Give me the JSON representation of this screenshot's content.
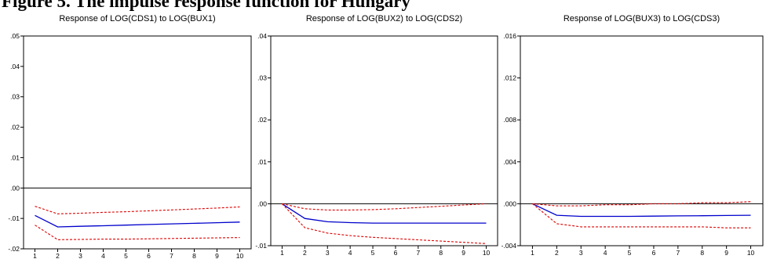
{
  "figure": {
    "title": "Figure 5. The impulse response function for Hungary"
  },
  "colors": {
    "response": "#0000cc",
    "band": "#dd0000",
    "axis": "#000000"
  },
  "chart_data": [
    {
      "type": "line",
      "title": "Response of LOG(CDS1) to LOG(BUX1)",
      "x": [
        1,
        2,
        3,
        4,
        5,
        6,
        7,
        8,
        9,
        10
      ],
      "x_tick_labels": [
        "1",
        "2",
        "3",
        "4",
        "5",
        "6",
        "7",
        "8",
        "9",
        "10"
      ],
      "ylim": [
        -0.02,
        0.05
      ],
      "y_ticks": [
        0.05,
        0.04,
        0.03,
        0.02,
        0.01,
        0.0,
        -0.01,
        -0.02
      ],
      "y_tick_labels": [
        ".05",
        ".04",
        ".03",
        ".02",
        ".01",
        ".00",
        "-.01",
        "-.02"
      ],
      "zero_line": true,
      "series": [
        {
          "role": "response",
          "style": "solid",
          "values": [
            -0.009,
            -0.0128,
            -0.0126,
            -0.0124,
            -0.0122,
            -0.012,
            -0.0118,
            -0.0116,
            -0.0114,
            -0.0112
          ]
        },
        {
          "role": "upper band",
          "style": "dashed",
          "values": [
            -0.006,
            -0.0085,
            -0.0083,
            -0.008,
            -0.0078,
            -0.0075,
            -0.0072,
            -0.0069,
            -0.0066,
            -0.0062
          ]
        },
        {
          "role": "lower band",
          "style": "dashed",
          "values": [
            -0.0122,
            -0.017,
            -0.0169,
            -0.0168,
            -0.0168,
            -0.0167,
            -0.0166,
            -0.0165,
            -0.0164,
            -0.0163
          ]
        }
      ]
    },
    {
      "type": "line",
      "title": "Response of LOG(BUX2) to LOG(CDS2)",
      "x": [
        1,
        2,
        3,
        4,
        5,
        6,
        7,
        8,
        9,
        10
      ],
      "x_tick_labels": [
        "1",
        "2",
        "3",
        "4",
        "5",
        "6",
        "7",
        "8",
        "9",
        "10"
      ],
      "ylim": [
        -0.01,
        0.04
      ],
      "y_ticks": [
        0.04,
        0.03,
        0.02,
        0.01,
        0.0,
        -0.01
      ],
      "y_tick_labels": [
        ".04",
        ".03",
        ".02",
        ".01",
        ".00",
        "-.01"
      ],
      "zero_line": true,
      "series": [
        {
          "role": "response",
          "style": "solid",
          "values": [
            0.0,
            -0.0035,
            -0.0043,
            -0.0045,
            -0.0046,
            -0.0046,
            -0.0046,
            -0.0046,
            -0.0046,
            -0.0046
          ]
        },
        {
          "role": "upper band",
          "style": "dashed",
          "values": [
            0.0,
            -0.0012,
            -0.0015,
            -0.0015,
            -0.0014,
            -0.0012,
            -0.0009,
            -0.0006,
            -0.0003,
            0.0
          ]
        },
        {
          "role": "lower band",
          "style": "dashed",
          "values": [
            0.0,
            -0.0057,
            -0.007,
            -0.0076,
            -0.008,
            -0.0083,
            -0.0086,
            -0.0089,
            -0.0092,
            -0.0095
          ]
        }
      ]
    },
    {
      "type": "line",
      "title": "Response of LOG(BUX3) to LOG(CDS3)",
      "x": [
        1,
        2,
        3,
        4,
        5,
        6,
        7,
        8,
        9,
        10
      ],
      "x_tick_labels": [
        "1",
        "2",
        "3",
        "4",
        "5",
        "6",
        "7",
        "8",
        "9",
        "10"
      ],
      "ylim": [
        -0.004,
        0.016
      ],
      "y_ticks": [
        0.016,
        0.012,
        0.008,
        0.004,
        0.0,
        -0.004
      ],
      "y_tick_labels": [
        ".016",
        ".012",
        ".008",
        ".004",
        ".000",
        "-.004"
      ],
      "zero_line": true,
      "series": [
        {
          "role": "response",
          "style": "solid",
          "values": [
            0.0,
            -0.0011,
            -0.0012,
            -0.0012,
            -0.0012,
            -0.00118,
            -0.00116,
            -0.00114,
            -0.00112,
            -0.0011
          ]
        },
        {
          "role": "upper band",
          "style": "dashed",
          "values": [
            0.0,
            -0.0002,
            -0.0002,
            -0.0001,
            -0.0001,
            0.0,
            0.0,
            0.0001,
            0.0001,
            0.0002
          ]
        },
        {
          "role": "lower band",
          "style": "dashed",
          "values": [
            0.0,
            -0.0019,
            -0.0022,
            -0.0022,
            -0.0022,
            -0.0022,
            -0.0022,
            -0.0022,
            -0.0023,
            -0.0023
          ]
        }
      ]
    }
  ]
}
